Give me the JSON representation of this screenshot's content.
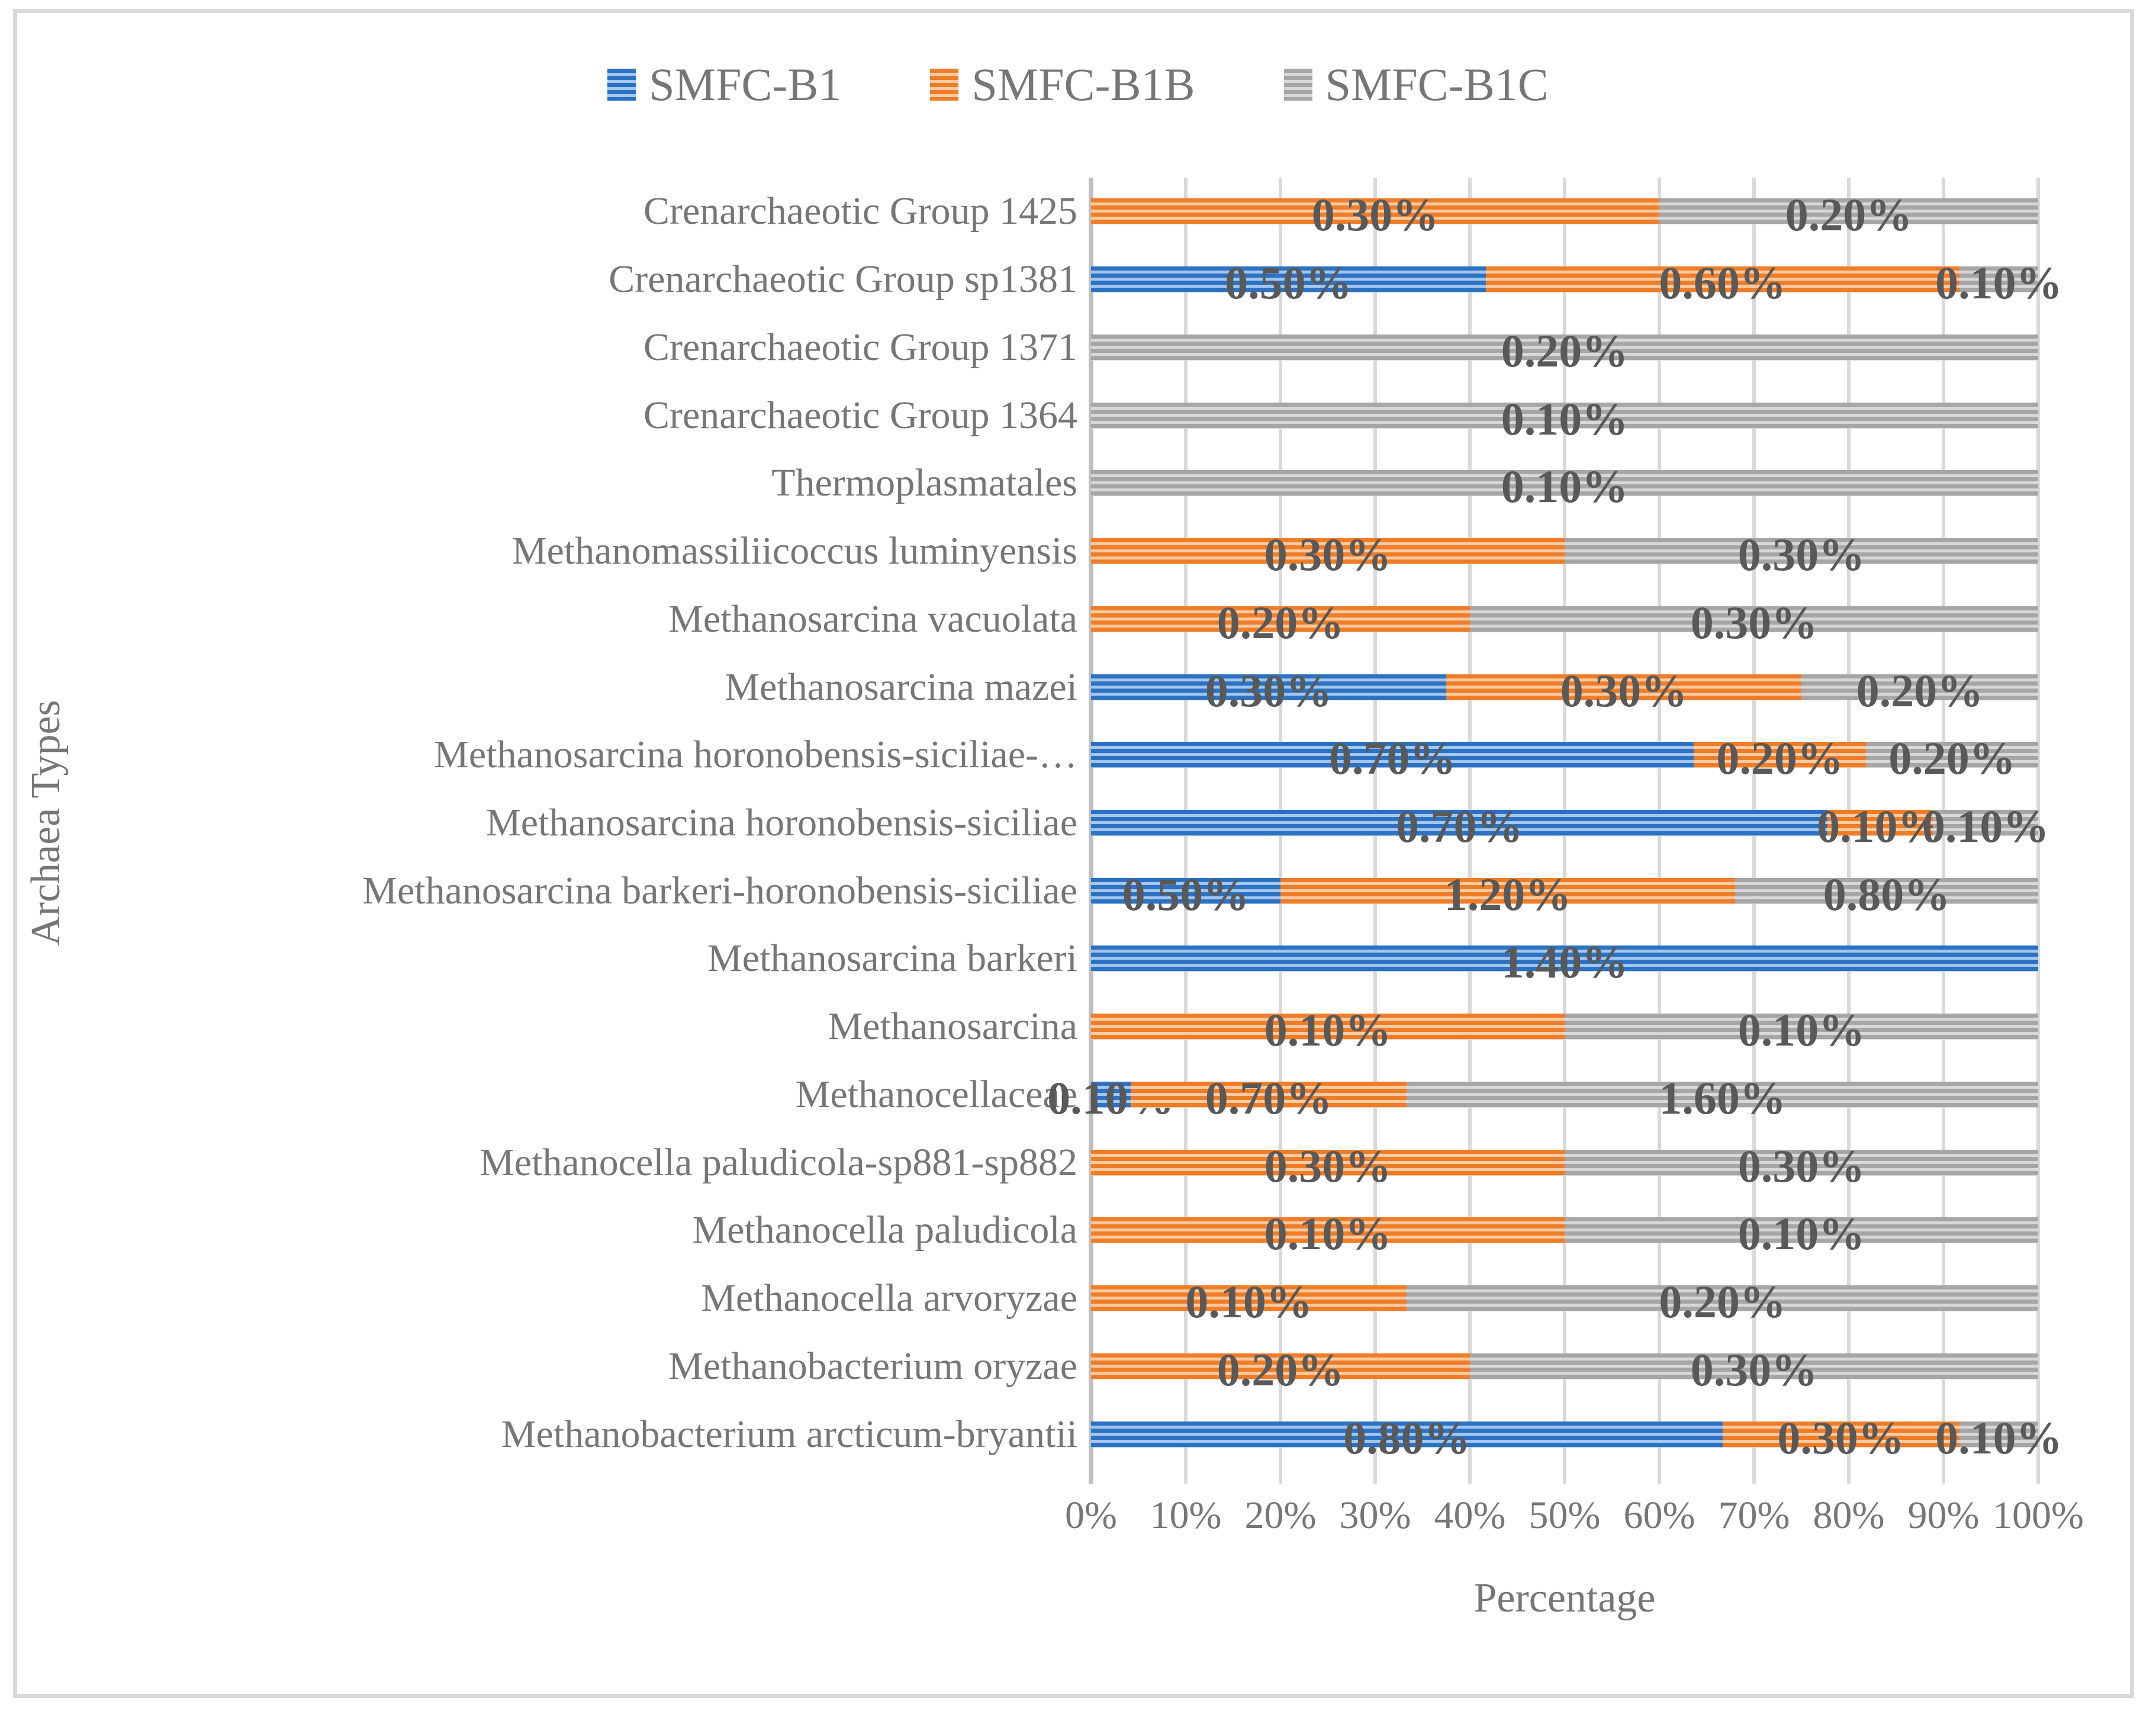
{
  "figure": {
    "x_axis_title": "Percentage",
    "y_axis_title": "Archaea Types",
    "border_color": "#D9D9D9",
    "gridline_color": "#D9D9D9",
    "axis_line_color": "#BFBFBF",
    "text_color": "#767676",
    "data_label_color": "#595959"
  },
  "chart_data": {
    "type": "bar",
    "subtype": "stacked-100-percent",
    "orientation": "horizontal",
    "xlabel": "Percentage",
    "ylabel": "Archaea Types",
    "xlim": [
      0,
      100
    ],
    "grid": true,
    "legend_position": "top",
    "x_ticks": [
      "0%",
      "10%",
      "20%",
      "30%",
      "40%",
      "50%",
      "60%",
      "70%",
      "80%",
      "90%",
      "100%"
    ],
    "categories": [
      "Crenarchaeotic Group 1425",
      "Crenarchaeotic Group sp1381",
      "Crenarchaeotic Group 1371",
      "Crenarchaeotic Group 1364",
      "Thermoplasmatales",
      "Methanomassiliicoccus luminyensis",
      "Methanosarcina vacuolata",
      "Methanosarcina mazei",
      "Methanosarcina horonobensis-siciliae-…",
      "Methanosarcina horonobensis-siciliae",
      "Methanosarcina barkeri-horonobensis-siciliae",
      "Methanosarcina barkeri",
      "Methanosarcina",
      "Methanocellaceae",
      "Methanocella paludicola-sp881-sp882",
      "Methanocella paludicola",
      "Methanocella arvoryzae",
      "Methanobacterium oryzae",
      "Methanobacterium arcticum-bryantii"
    ],
    "series": [
      {
        "name": "SMFC-B1",
        "color": "#2B72C3",
        "stripe_color": "#A5C6EC",
        "values": [
          0,
          0.5,
          0,
          0,
          0,
          0,
          0,
          0.3,
          0.7,
          0.7,
          0.5,
          1.4,
          0,
          0.1,
          0,
          0,
          0,
          0,
          0.8
        ],
        "labels": [
          "",
          "0.50%",
          "",
          "",
          "",
          "",
          "",
          "0.30%",
          "0.70%",
          "0.70%",
          "0.50%",
          "1.40%",
          "",
          "0.10%",
          "",
          "",
          "",
          "",
          "0.80%"
        ]
      },
      {
        "name": "SMFC-B1B",
        "color": "#EF7D28",
        "stripe_color": "#F9CBA3",
        "values": [
          0.3,
          0.6,
          0,
          0,
          0,
          0.3,
          0.2,
          0.3,
          0.2,
          0.1,
          1.2,
          0,
          0.1,
          0.7,
          0.3,
          0.1,
          0.1,
          0.2,
          0.3
        ],
        "labels": [
          "0.30%",
          "0.60%",
          "",
          "",
          "",
          "0.30%",
          "0.20%",
          "0.30%",
          "0.20%",
          "0.10%",
          "1.20%",
          "",
          "0.10%",
          "0.70%",
          "0.30%",
          "0.10%",
          "0.10%",
          "0.20%",
          "0.30%"
        ]
      },
      {
        "name": "SMFC-B1C",
        "color": "#A6A6A6",
        "stripe_color": "#D8D8D8",
        "values": [
          0.2,
          0.1,
          0.2,
          0.1,
          0.1,
          0.3,
          0.3,
          0.2,
          0.2,
          0.1,
          0.8,
          0,
          0.1,
          1.6,
          0.3,
          0.1,
          0.2,
          0.3,
          0.1
        ],
        "labels": [
          "0.20%",
          "0.10%",
          "0.20%",
          "0.10%",
          "0.10%",
          "0.30%",
          "0.30%",
          "0.20%",
          "0.20%",
          "0.10%",
          "0.80%",
          "",
          "0.10%",
          "1.60%",
          "0.30%",
          "0.10%",
          "0.20%",
          "0.30%",
          "0.10%"
        ]
      }
    ]
  }
}
